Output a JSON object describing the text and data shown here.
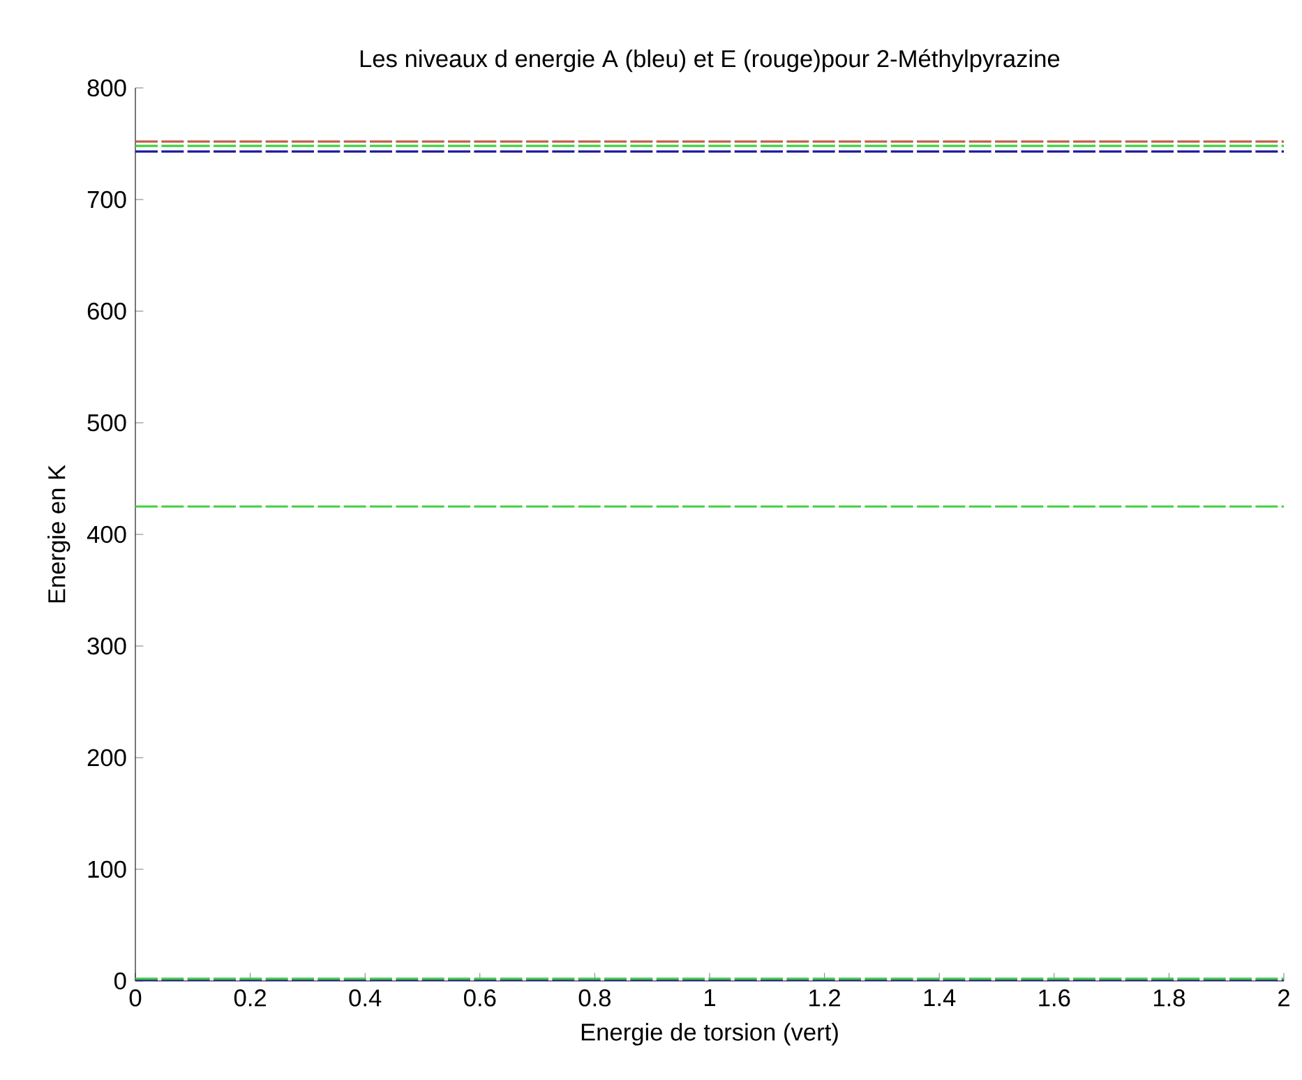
{
  "chart_data": {
    "type": "line",
    "title": "Les niveaux d energie A (bleu) et E (rouge)pour 2-Méthylpyrazine",
    "xlabel": "Energie de torsion (vert)",
    "ylabel": "Energie en K",
    "x": [
      0,
      2
    ],
    "series": [
      {
        "color": "#c0604a",
        "values": [
          752,
          752
        ]
      },
      {
        "color": "#40d040",
        "values": [
          748,
          748
        ]
      },
      {
        "color": "#1a1aa0",
        "values": [
          743,
          743
        ]
      },
      {
        "color": "#40d040",
        "values": [
          425,
          425
        ]
      },
      {
        "color": "#40d040",
        "values": [
          2,
          2
        ]
      },
      {
        "color": "#1a1aa0",
        "values": [
          0,
          0
        ]
      }
    ],
    "line_style": "dashed",
    "marker": "none",
    "grid": false,
    "xlim": [
      0,
      2
    ],
    "ylim": [
      0,
      800
    ],
    "xticks": [
      0,
      0.2,
      0.4,
      0.6,
      0.8,
      1,
      1.2,
      1.4,
      1.6,
      1.8,
      2
    ],
    "yticks": [
      0,
      100,
      200,
      300,
      400,
      500,
      600,
      700,
      800
    ]
  }
}
